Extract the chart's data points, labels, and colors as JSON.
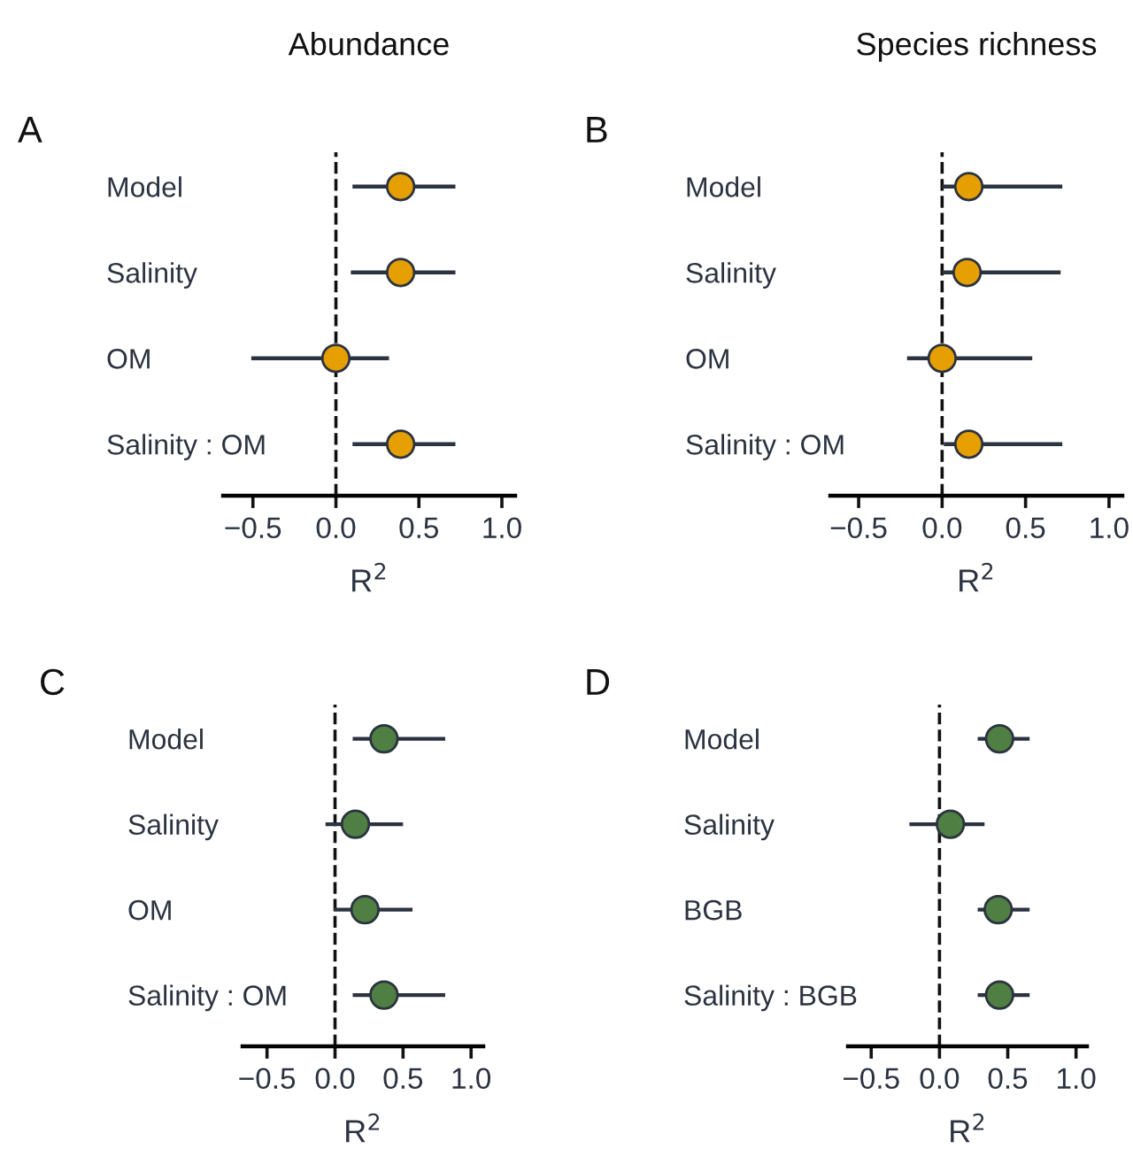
{
  "chart_data": [
    {
      "type": "scatter",
      "orientation": "horizontal",
      "title": "Abundance",
      "annotations": [
        "A"
      ],
      "xlabel": "R$^{2}$",
      "categories": [
        "Model",
        "Salinity",
        "OM",
        "Salinity : OM"
      ],
      "values": [
        0.39,
        0.39,
        0.0,
        0.39
      ],
      "errors": [
        [
          0.1,
          0.72
        ],
        [
          0.09,
          0.72
        ],
        [
          -0.51,
          0.32
        ],
        [
          0.1,
          0.72
        ]
      ],
      "color": "#e69f00",
      "marker": "circle",
      "xlim": [
        -0.68,
        1.08
      ],
      "xticks": [
        {
          "value": -0.5,
          "label": "−0.5"
        },
        {
          "value": 0,
          "label": "0.0"
        },
        {
          "value": 0.5,
          "label": "0.5"
        },
        {
          "value": 1.0,
          "label": "1.0"
        }
      ],
      "ref_lines": [
        {
          "axis": "x",
          "value": 0,
          "line_style": "dashed"
        }
      ],
      "grid": false,
      "legend": false
    },
    {
      "type": "scatter",
      "orientation": "horizontal",
      "title": "Species richness",
      "annotations": [
        "B"
      ],
      "xlabel": "R$^{2}$",
      "categories": [
        "Model",
        "Salinity",
        "OM",
        "Salinity : OM"
      ],
      "values": [
        0.16,
        0.15,
        0.0,
        0.16
      ],
      "errors": [
        [
          0.0,
          0.72
        ],
        [
          0.0,
          0.71
        ],
        [
          -0.21,
          0.54
        ],
        [
          0.01,
          0.72
        ]
      ],
      "color": "#e69f00",
      "marker": "circle",
      "xlim": [
        -0.67,
        1.08
      ],
      "xticks": [
        {
          "value": -0.5,
          "label": "−0.5"
        },
        {
          "value": 0,
          "label": "0.0"
        },
        {
          "value": 0.5,
          "label": "0.5"
        },
        {
          "value": 1.0,
          "label": "1.0"
        }
      ],
      "ref_lines": [
        {
          "axis": "x",
          "value": 0,
          "line_style": "dashed"
        }
      ],
      "grid": false,
      "legend": false
    },
    {
      "type": "scatter",
      "orientation": "horizontal",
      "annotations": [
        "C"
      ],
      "xlabel": "R$^{2}$",
      "categories": [
        "Model",
        "Salinity",
        "OM",
        "Salinity : OM"
      ],
      "values": [
        0.36,
        0.15,
        0.22,
        0.36
      ],
      "errors": [
        [
          0.13,
          0.81
        ],
        [
          -0.07,
          0.5
        ],
        [
          -0.01,
          0.57
        ],
        [
          0.13,
          0.81
        ]
      ],
      "color": "#4f7f42",
      "marker": "circle",
      "xlim": [
        -0.68,
        1.09
      ],
      "xticks": [
        {
          "value": -0.5,
          "label": "−0.5"
        },
        {
          "value": 0,
          "label": "0.0"
        },
        {
          "value": 0.5,
          "label": "0.5"
        },
        {
          "value": 1.0,
          "label": "1.0"
        }
      ],
      "ref_lines": [
        {
          "axis": "x",
          "value": 0,
          "line_style": "dashed"
        }
      ],
      "grid": false,
      "legend": false
    },
    {
      "type": "scatter",
      "orientation": "horizontal",
      "annotations": [
        "D"
      ],
      "xlabel": "R$^{2}$",
      "categories": [
        "Model",
        "Salinity",
        "BGB",
        "Salinity : BGB"
      ],
      "values": [
        0.44,
        0.08,
        0.43,
        0.44
      ],
      "errors": [
        [
          0.28,
          0.66
        ],
        [
          -0.22,
          0.33
        ],
        [
          0.28,
          0.66
        ],
        [
          0.28,
          0.66
        ]
      ],
      "color": "#4f7f42",
      "marker": "circle",
      "xlim": [
        -0.67,
        1.08
      ],
      "xticks": [
        {
          "value": -0.5,
          "label": "−0.5"
        },
        {
          "value": 0,
          "label": "0.0"
        },
        {
          "value": 0.5,
          "label": "0.5"
        },
        {
          "value": 1.0,
          "label": "1.0"
        }
      ],
      "ref_lines": [
        {
          "axis": "x",
          "value": 0,
          "line_style": "dashed"
        }
      ],
      "grid": false,
      "legend": false
    }
  ]
}
